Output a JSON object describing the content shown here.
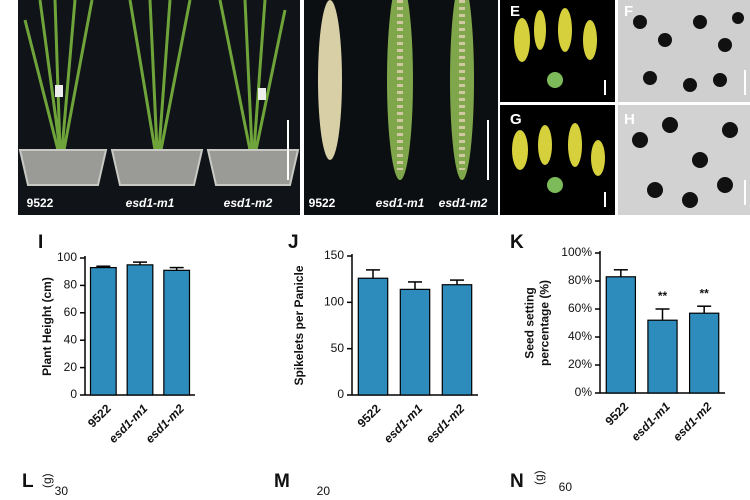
{
  "photo_panels": {
    "plants": {
      "labels": [
        "9522",
        "esd1-m1",
        "esd1-m2"
      ]
    },
    "panicles": {
      "labels": [
        "9522",
        "esd1-m1",
        "esd1-m2"
      ]
    },
    "anthers": {
      "letters": [
        "E",
        "G"
      ]
    },
    "pollen": {
      "letters": [
        "F",
        "H"
      ]
    }
  },
  "chart_data": [
    {
      "type": "bar",
      "panel": "I",
      "ylabel": [
        "Plant Height (cm)"
      ],
      "categories": [
        "9522",
        "esd1-m1",
        "esd1-m2"
      ],
      "values": [
        93,
        95,
        91
      ],
      "errors": [
        1,
        2,
        2
      ],
      "color": "#2e8cbc",
      "ylim": [
        0,
        100
      ],
      "yticks": [
        0,
        20,
        40,
        60,
        80,
        100
      ]
    },
    {
      "type": "bar",
      "panel": "J",
      "ylabel": [
        "Spikelets per Panicle"
      ],
      "categories": [
        "9522",
        "esd1-m1",
        "esd1-m2"
      ],
      "values": [
        126,
        114,
        119
      ],
      "errors": [
        9,
        8,
        5
      ],
      "color": "#2e8cbc",
      "ylim": [
        0,
        150
      ],
      "yticks": [
        0,
        50,
        100,
        150
      ]
    },
    {
      "type": "bar",
      "panel": "K",
      "ylabel": [
        "Seed setting",
        "percentage (%)"
      ],
      "categories": [
        "9522",
        "esd1-m1",
        "esd1-m2"
      ],
      "values": [
        83,
        52,
        57
      ],
      "errors": [
        5,
        8,
        5
      ],
      "color": "#2e8cbc",
      "ylim": [
        0,
        100
      ],
      "yticks": [
        {
          "value": 0,
          "label": "0%"
        },
        {
          "value": 20,
          "label": "20%"
        },
        {
          "value": 40,
          "label": "40%"
        },
        {
          "value": 60,
          "label": "60%"
        },
        {
          "value": 80,
          "label": "80%"
        },
        {
          "value": 100,
          "label": "100%"
        }
      ],
      "annotations": [
        {
          "category": 1,
          "text": "**"
        },
        {
          "category": 2,
          "text": "**"
        }
      ]
    }
  ],
  "cut_off_panels": [
    {
      "panel": "L",
      "tick": "30",
      "ylabel_fragment": "(g)"
    },
    {
      "panel": "M",
      "tick": "20"
    },
    {
      "panel": "N",
      "tick": "60",
      "ylabel_fragment": "(g)"
    }
  ]
}
